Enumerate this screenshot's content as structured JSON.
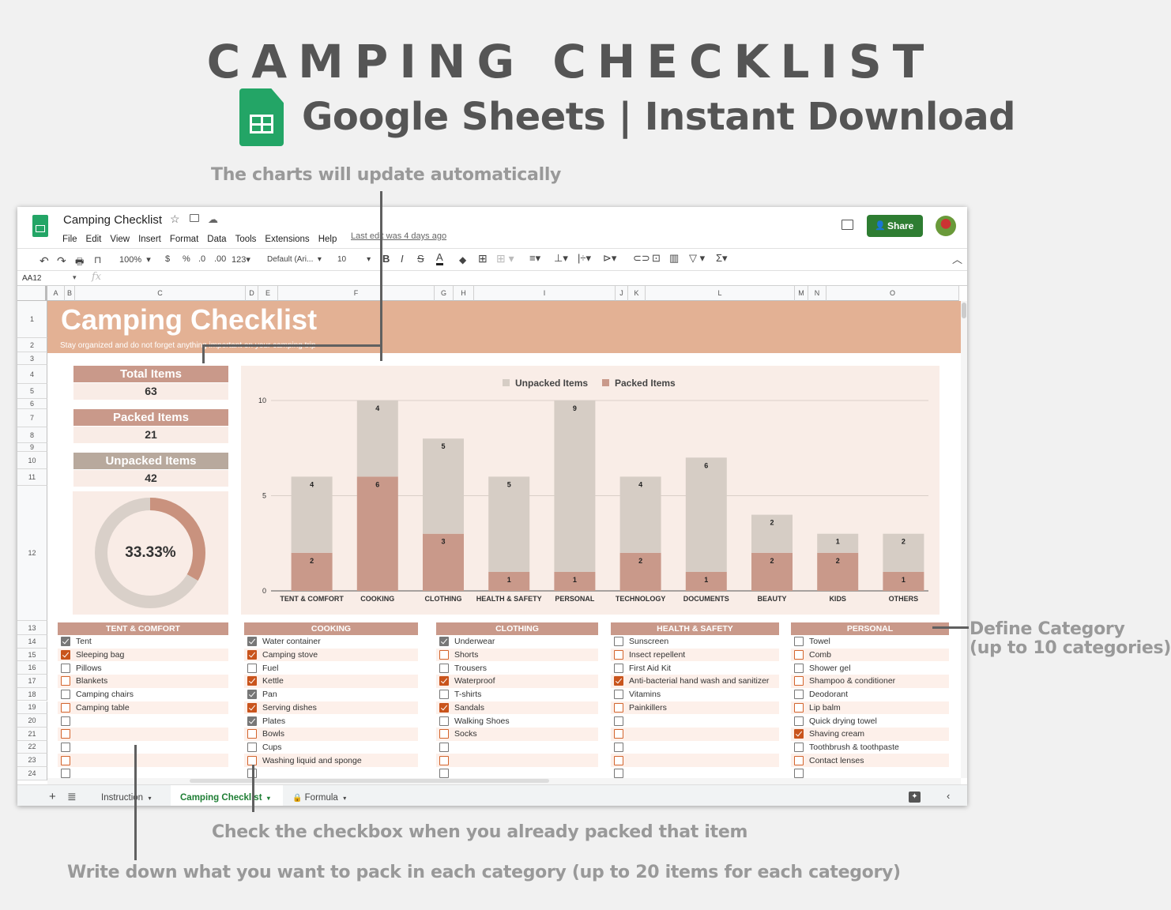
{
  "hero": {
    "title": "CAMPING CHECKLIST",
    "subtitle": "Google Sheets | Instant Download"
  },
  "annotations": {
    "charts": "The charts will update automatically",
    "category_1": "Define Category",
    "category_2": "(up to 10 categories)",
    "checkbox": "Check the checkbox when you already packed that item",
    "write": "Write down what you want to pack in each category (up to 20 items for each category)"
  },
  "app": {
    "doc_title": "Camping Checklist",
    "menu": [
      "File",
      "Edit",
      "View",
      "Insert",
      "Format",
      "Data",
      "Tools",
      "Extensions",
      "Help"
    ],
    "last_edit": "Last edit was 4 days ago",
    "share": "Share",
    "zoom": "100%",
    "currency": "$",
    "percent": "%",
    "dec_less": ".0",
    "dec_more": ".00",
    "format_more": "123",
    "font": "Default (Ari...",
    "font_size": "10",
    "cell_ref": "AA12",
    "fx": "fx",
    "columns": [
      [
        "A",
        38,
        60
      ],
      [
        "B",
        60,
        73
      ],
      [
        "C",
        73,
        289
      ],
      [
        "D",
        289,
        305
      ],
      [
        "E",
        305,
        330
      ],
      [
        "F",
        330,
        528
      ],
      [
        "G",
        528,
        552
      ],
      [
        "H",
        552,
        578
      ],
      [
        "I",
        578,
        757
      ],
      [
        "J",
        757,
        773
      ],
      [
        "K",
        773,
        795
      ],
      [
        "L",
        795,
        984
      ],
      [
        "M",
        984,
        1001
      ],
      [
        "N",
        1001,
        1024
      ],
      [
        "O",
        1024,
        1192
      ]
    ],
    "tabs": {
      "t1": "Instruction",
      "t2": "Camping Checklist",
      "t3": "Formula"
    }
  },
  "sheet": {
    "title": "Camping Checklist",
    "tagline": "Stay organized and do not forget anything important on your camping trip",
    "stats": {
      "total_label": "Total Items",
      "total": "63",
      "packed_label": "Packed Items",
      "packed": "21",
      "unpacked_label": "Unpacked Items",
      "unpacked": "42",
      "percent": "33.33%",
      "packed_fraction": 0.3333
    },
    "colors": {
      "packed": "#c9998a",
      "unpacked": "#d6cdc5",
      "header": "#c9998a",
      "unpacked_header": "#b8a99d",
      "banner": "#e3b194",
      "green": "#2e7d32"
    }
  },
  "chart_data": {
    "type": "bar",
    "stacked": true,
    "categories": [
      "TENT & COMFORT",
      "COOKING",
      "CLOTHING",
      "HEALTH & SAFETY",
      "PERSONAL",
      "TECHNOLOGY",
      "DOCUMENTS",
      "BEAUTY",
      "KIDS",
      "OTHERS"
    ],
    "series": [
      {
        "name": "Packed Items",
        "values": [
          2,
          6,
          3,
          1,
          1,
          2,
          1,
          2,
          2,
          1
        ],
        "color": "#c9998a"
      },
      {
        "name": "Unpacked Items",
        "values": [
          4,
          4,
          5,
          5,
          9,
          4,
          6,
          2,
          1,
          2
        ],
        "color": "#d6cdc5"
      }
    ],
    "legend_order": [
      "Unpacked Items",
      "Packed Items"
    ],
    "legend": "top",
    "ylim": [
      0,
      10
    ],
    "yticks": [
      "0",
      "5",
      "10"
    ],
    "grid": true
  },
  "categories": [
    {
      "name": "TENT & COMFORT",
      "items": [
        [
          "Tent",
          true
        ],
        [
          "Sleeping bag",
          true
        ],
        [
          "Pillows",
          false
        ],
        [
          "Blankets",
          false
        ],
        [
          "Camping chairs",
          false
        ],
        [
          "Camping table",
          false
        ],
        [
          "",
          false
        ],
        [
          "",
          false
        ],
        [
          "",
          false
        ],
        [
          "",
          false
        ],
        [
          "",
          false
        ]
      ]
    },
    {
      "name": "COOKING",
      "items": [
        [
          "Water container",
          true
        ],
        [
          "Camping stove",
          true
        ],
        [
          "Fuel",
          false
        ],
        [
          "Kettle",
          true
        ],
        [
          "Pan",
          true
        ],
        [
          "Serving dishes",
          true
        ],
        [
          "Plates",
          true
        ],
        [
          "Bowls",
          false
        ],
        [
          "Cups",
          false
        ],
        [
          "Washing liquid and sponge",
          false
        ],
        [
          "",
          false
        ]
      ]
    },
    {
      "name": "CLOTHING",
      "items": [
        [
          "Underwear",
          true
        ],
        [
          "Shorts",
          false
        ],
        [
          "Trousers",
          false
        ],
        [
          "Waterproof",
          true
        ],
        [
          "T-shirts",
          false
        ],
        [
          "Sandals",
          true
        ],
        [
          "Walking Shoes",
          false
        ],
        [
          "Socks",
          false
        ],
        [
          "",
          false
        ],
        [
          "",
          false
        ],
        [
          "",
          false
        ]
      ]
    },
    {
      "name": "HEALTH & SAFETY",
      "items": [
        [
          "Sunscreen",
          false
        ],
        [
          "Insect repellent",
          false
        ],
        [
          "First Aid Kit",
          false
        ],
        [
          "Anti-bacterial hand wash and sanitizer",
          true
        ],
        [
          "Vitamins",
          false
        ],
        [
          "Painkillers",
          false
        ],
        [
          "",
          false
        ],
        [
          "",
          false
        ],
        [
          "",
          false
        ],
        [
          "",
          false
        ],
        [
          "",
          false
        ]
      ]
    },
    {
      "name": "PERSONAL",
      "items": [
        [
          "Towel",
          false
        ],
        [
          "Comb",
          false
        ],
        [
          "Shower gel",
          false
        ],
        [
          "Shampoo & conditioner",
          false
        ],
        [
          "Deodorant",
          false
        ],
        [
          "Lip balm",
          false
        ],
        [
          "Quick drying towel",
          false
        ],
        [
          "Shaving cream",
          true
        ],
        [
          "Toothbrush & toothpaste",
          false
        ],
        [
          "Contact lenses",
          false
        ],
        [
          "",
          false
        ]
      ]
    }
  ]
}
